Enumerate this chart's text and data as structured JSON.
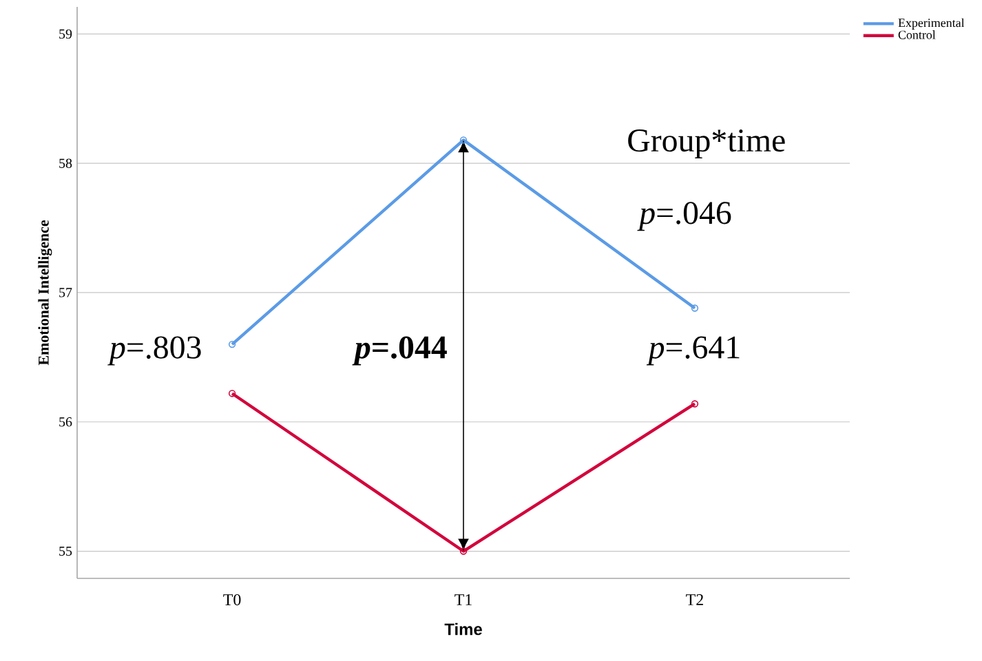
{
  "chart_data": {
    "type": "line",
    "xlabel": "Time",
    "ylabel": "Emotional Intelligence",
    "categories": [
      "T0",
      "T1",
      "T2"
    ],
    "series": [
      {
        "name": "Experimental",
        "color": "#5b9be6",
        "values": [
          56.6,
          58.18,
          56.88
        ]
      },
      {
        "name": "Control",
        "color": "#d2043c",
        "values": [
          56.22,
          55.0,
          56.14
        ]
      }
    ],
    "ylim": [
      54.79,
      59.21
    ],
    "yticks": [
      55,
      56,
      57,
      58,
      59
    ],
    "grid": "y",
    "legend": "top right",
    "marker": "circle",
    "line_style": "solid",
    "annotations": [
      "Group*time",
      "*p*=.046",
      "*p*=.803",
      "***p*=.044**",
      "*p*=.641"
    ]
  }
}
